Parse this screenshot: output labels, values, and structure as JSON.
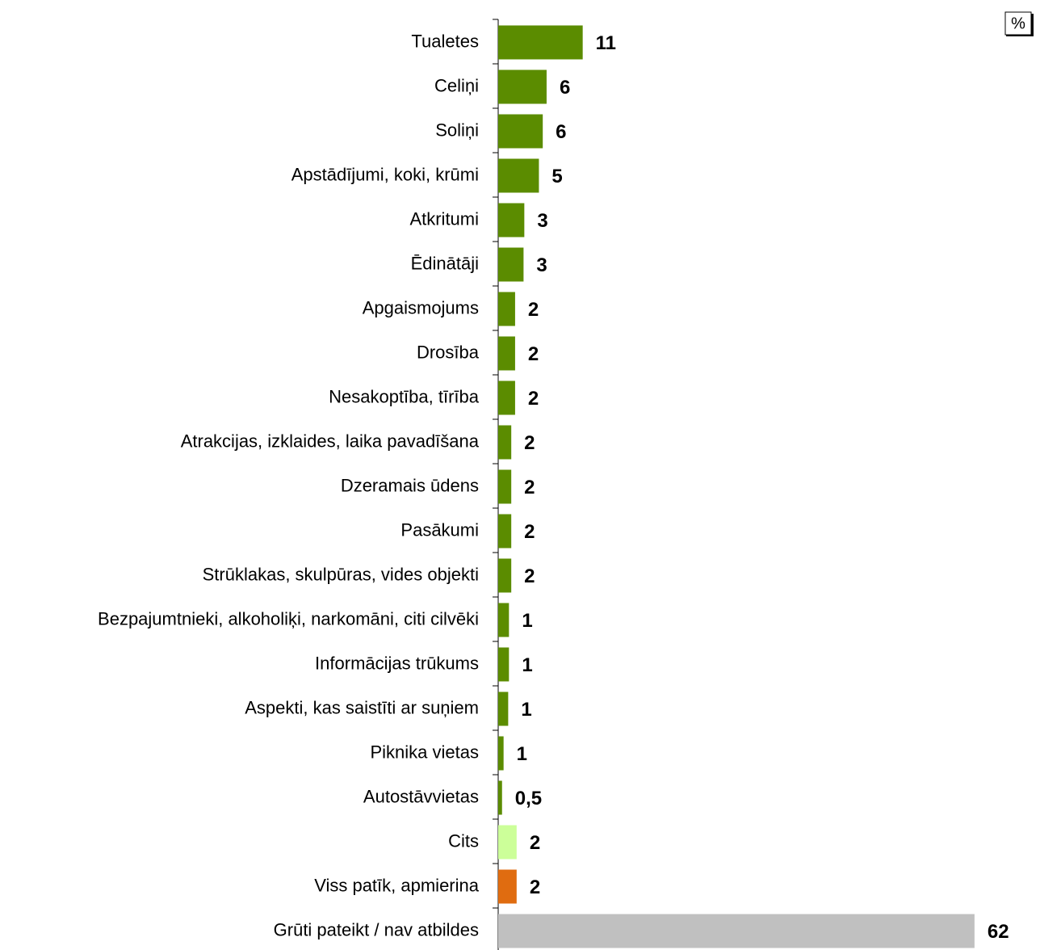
{
  "chart_data": {
    "type": "bar",
    "orientation": "horizontal",
    "unit_label": "%",
    "categories": [
      "Tualetes",
      "Celiņi",
      "Soliņi",
      "Apstādījumi, koki, krūmi",
      "Atkritumi",
      "Ēdinātāji",
      "Apgaismojums",
      "Drosība",
      "Nesakoptība, tīrība",
      "Atrakcijas, izklaides, laika pavadīšana",
      "Dzeramais ūdens",
      "Pasākumi",
      "Strūklakas, skulpūras, vides objekti",
      "Bezpajumtnieki, alkoholiķi, narkomāni, citi cilvēki",
      "Informācijas trūkums",
      "Aspekti, kas saistīti ar suņiem",
      "Piknika vietas",
      "Autostāvvietas",
      "Cits",
      "Viss patīk, apmierina",
      "Grūti pateikt / nav atbildes"
    ],
    "values": [
      11,
      6.3,
      5.8,
      5.3,
      3.4,
      3.3,
      2.2,
      2.2,
      2.2,
      1.7,
      1.7,
      1.7,
      1.7,
      1.4,
      1.4,
      1.3,
      0.7,
      0.5,
      2.4,
      2.4,
      62
    ],
    "value_labels": [
      "11",
      "6",
      "6",
      "5",
      "3",
      "3",
      "2",
      "2",
      "2",
      "2",
      "2",
      "2",
      "2",
      "1",
      "1",
      "1",
      "1",
      "0,5",
      "2",
      "2",
      "62"
    ],
    "colors": [
      "#5b8c00",
      "#5b8c00",
      "#5b8c00",
      "#5b8c00",
      "#5b8c00",
      "#5b8c00",
      "#5b8c00",
      "#5b8c00",
      "#5b8c00",
      "#5b8c00",
      "#5b8c00",
      "#5b8c00",
      "#5b8c00",
      "#5b8c00",
      "#5b8c00",
      "#5b8c00",
      "#5b8c00",
      "#5b8c00",
      "#ccff99",
      "#e06c10",
      "#c0c0c0"
    ],
    "xlim": [
      0,
      70
    ]
  }
}
